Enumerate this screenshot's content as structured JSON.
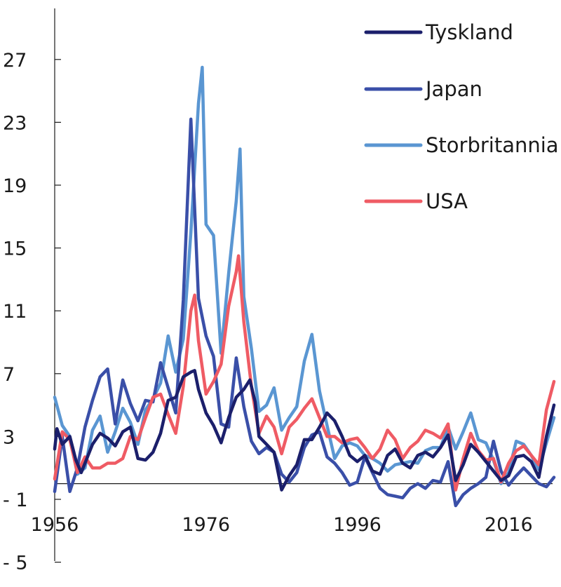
{
  "chart_data": {
    "type": "line",
    "title": "",
    "xlabel": "",
    "ylabel": "",
    "xlim": [
      1956,
      2023
    ],
    "ylim": [
      -5,
      30
    ],
    "yticks": [
      -5,
      -1,
      3,
      7,
      11,
      15,
      19,
      23,
      27
    ],
    "ytick_labels": [
      "- 5",
      "- 1",
      "3",
      "7",
      "11",
      "15",
      "19",
      "23",
      "27"
    ],
    "xticks": [
      1956,
      1976,
      1996,
      2016
    ],
    "xtick_labels": [
      "1956",
      "1976",
      "1996",
      "2016"
    ],
    "zero_line": 0,
    "grid": false,
    "legend_position": "top-right",
    "series": [
      {
        "name": "Tyskland",
        "color": "#1b1f6b",
        "points": [
          [
            1956.0,
            2.2
          ],
          [
            1956.3,
            3.5
          ],
          [
            1957.0,
            2.5
          ],
          [
            1958.0,
            3.0
          ],
          [
            1958.8,
            1.5
          ],
          [
            1959.5,
            0.7
          ],
          [
            1960.0,
            1.3
          ],
          [
            1961.0,
            2.5
          ],
          [
            1962.0,
            3.2
          ],
          [
            1963.0,
            2.9
          ],
          [
            1964.0,
            2.4
          ],
          [
            1965.0,
            3.3
          ],
          [
            1966.0,
            3.6
          ],
          [
            1967.0,
            1.6
          ],
          [
            1968.0,
            1.5
          ],
          [
            1969.0,
            2.0
          ],
          [
            1970.0,
            3.2
          ],
          [
            1971.0,
            5.3
          ],
          [
            1972.0,
            5.5
          ],
          [
            1973.0,
            6.8
          ],
          [
            1974.0,
            7.1
          ],
          [
            1974.5,
            7.2
          ],
          [
            1975.0,
            6.0
          ],
          [
            1976.0,
            4.5
          ],
          [
            1977.0,
            3.7
          ],
          [
            1978.0,
            2.6
          ],
          [
            1979.0,
            4.2
          ],
          [
            1980.0,
            5.5
          ],
          [
            1981.0,
            6.0
          ],
          [
            1981.8,
            6.6
          ],
          [
            1982.5,
            5.2
          ],
          [
            1983.0,
            3.0
          ],
          [
            1984.0,
            2.5
          ],
          [
            1985.0,
            2.0
          ],
          [
            1986.0,
            -0.4
          ],
          [
            1987.0,
            0.5
          ],
          [
            1988.0,
            1.2
          ],
          [
            1989.0,
            2.8
          ],
          [
            1990.0,
            2.8
          ],
          [
            1991.0,
            3.6
          ],
          [
            1992.0,
            4.5
          ],
          [
            1993.0,
            4.0
          ],
          [
            1994.0,
            3.0
          ],
          [
            1995.0,
            1.8
          ],
          [
            1996.0,
            1.4
          ],
          [
            1997.0,
            1.8
          ],
          [
            1998.0,
            0.8
          ],
          [
            1999.0,
            0.6
          ],
          [
            2000.0,
            1.8
          ],
          [
            2001.0,
            2.2
          ],
          [
            2002.0,
            1.3
          ],
          [
            2003.0,
            1.0
          ],
          [
            2004.0,
            1.8
          ],
          [
            2005.0,
            2.0
          ],
          [
            2006.0,
            1.7
          ],
          [
            2007.0,
            2.3
          ],
          [
            2008.0,
            3.1
          ],
          [
            2009.0,
            0.2
          ],
          [
            2010.0,
            1.2
          ],
          [
            2011.0,
            2.5
          ],
          [
            2012.0,
            2.0
          ],
          [
            2013.0,
            1.4
          ],
          [
            2014.0,
            0.8
          ],
          [
            2015.0,
            0.2
          ],
          [
            2016.0,
            0.5
          ],
          [
            2017.0,
            1.7
          ],
          [
            2018.0,
            1.8
          ],
          [
            2019.0,
            1.4
          ],
          [
            2020.0,
            0.4
          ],
          [
            2021.0,
            3.0
          ],
          [
            2022.0,
            5.0
          ]
        ]
      },
      {
        "name": "Japan",
        "color": "#3a4fa8",
        "points": [
          [
            1956.0,
            -0.5
          ],
          [
            1957.0,
            3.0
          ],
          [
            1958.0,
            -0.5
          ],
          [
            1959.0,
            1.0
          ],
          [
            1960.0,
            3.6
          ],
          [
            1961.0,
            5.3
          ],
          [
            1962.0,
            6.8
          ],
          [
            1963.0,
            7.3
          ],
          [
            1964.0,
            3.8
          ],
          [
            1965.0,
            6.6
          ],
          [
            1966.0,
            5.1
          ],
          [
            1967.0,
            4.0
          ],
          [
            1968.0,
            5.3
          ],
          [
            1969.0,
            5.2
          ],
          [
            1970.0,
            7.7
          ],
          [
            1971.0,
            6.1
          ],
          [
            1972.0,
            4.5
          ],
          [
            1973.0,
            11.7
          ],
          [
            1974.0,
            23.2
          ],
          [
            1975.0,
            11.8
          ],
          [
            1976.0,
            9.4
          ],
          [
            1977.0,
            8.1
          ],
          [
            1978.0,
            3.8
          ],
          [
            1979.0,
            3.6
          ],
          [
            1980.0,
            8.0
          ],
          [
            1981.0,
            4.9
          ],
          [
            1982.0,
            2.7
          ],
          [
            1983.0,
            1.9
          ],
          [
            1984.0,
            2.3
          ],
          [
            1985.0,
            2.0
          ],
          [
            1986.0,
            0.6
          ],
          [
            1987.0,
            0.1
          ],
          [
            1988.0,
            0.7
          ],
          [
            1989.0,
            2.3
          ],
          [
            1990.0,
            3.1
          ],
          [
            1991.0,
            3.3
          ],
          [
            1992.0,
            1.7
          ],
          [
            1993.0,
            1.3
          ],
          [
            1994.0,
            0.7
          ],
          [
            1995.0,
            -0.1
          ],
          [
            1996.0,
            0.1
          ],
          [
            1997.0,
            1.7
          ],
          [
            1998.0,
            0.7
          ],
          [
            1999.0,
            -0.3
          ],
          [
            2000.0,
            -0.7
          ],
          [
            2001.0,
            -0.8
          ],
          [
            2002.0,
            -0.9
          ],
          [
            2003.0,
            -0.3
          ],
          [
            2004.0,
            0.0
          ],
          [
            2005.0,
            -0.3
          ],
          [
            2006.0,
            0.2
          ],
          [
            2007.0,
            0.1
          ],
          [
            2008.0,
            1.4
          ],
          [
            2009.0,
            -1.4
          ],
          [
            2010.0,
            -0.7
          ],
          [
            2011.0,
            -0.3
          ],
          [
            2012.0,
            0.0
          ],
          [
            2013.0,
            0.4
          ],
          [
            2014.0,
            2.7
          ],
          [
            2015.0,
            0.8
          ],
          [
            2016.0,
            -0.1
          ],
          [
            2017.0,
            0.5
          ],
          [
            2018.0,
            1.0
          ],
          [
            2019.0,
            0.5
          ],
          [
            2020.0,
            0.0
          ],
          [
            2021.0,
            -0.2
          ],
          [
            2022.0,
            0.4
          ]
        ]
      },
      {
        "name": "Storbritannia",
        "color": "#5a96d2",
        "points": [
          [
            1956.0,
            5.5
          ],
          [
            1957.0,
            3.7
          ],
          [
            1958.0,
            3.0
          ],
          [
            1959.0,
            0.6
          ],
          [
            1960.0,
            1.0
          ],
          [
            1961.0,
            3.4
          ],
          [
            1962.0,
            4.3
          ],
          [
            1963.0,
            2.0
          ],
          [
            1964.0,
            3.3
          ],
          [
            1965.0,
            4.8
          ],
          [
            1966.0,
            3.9
          ],
          [
            1967.0,
            2.5
          ],
          [
            1968.0,
            4.7
          ],
          [
            1969.0,
            5.4
          ],
          [
            1970.0,
            6.4
          ],
          [
            1971.0,
            9.4
          ],
          [
            1972.0,
            7.1
          ],
          [
            1973.0,
            9.2
          ],
          [
            1974.0,
            16.0
          ],
          [
            1975.0,
            24.2
          ],
          [
            1975.5,
            26.5
          ],
          [
            1976.0,
            16.5
          ],
          [
            1977.0,
            15.8
          ],
          [
            1978.0,
            8.3
          ],
          [
            1979.0,
            13.4
          ],
          [
            1980.0,
            18.0
          ],
          [
            1980.5,
            21.3
          ],
          [
            1981.0,
            11.9
          ],
          [
            1982.0,
            8.6
          ],
          [
            1983.0,
            4.6
          ],
          [
            1984.0,
            5.0
          ],
          [
            1985.0,
            6.1
          ],
          [
            1986.0,
            3.4
          ],
          [
            1987.0,
            4.2
          ],
          [
            1988.0,
            4.9
          ],
          [
            1989.0,
            7.8
          ],
          [
            1990.0,
            9.5
          ],
          [
            1991.0,
            5.9
          ],
          [
            1992.0,
            3.7
          ],
          [
            1993.0,
            1.6
          ],
          [
            1994.0,
            2.4
          ],
          [
            1995.0,
            2.6
          ],
          [
            1996.0,
            2.4
          ],
          [
            1997.0,
            1.8
          ],
          [
            1998.0,
            1.6
          ],
          [
            1999.0,
            1.3
          ],
          [
            2000.0,
            0.8
          ],
          [
            2001.0,
            1.2
          ],
          [
            2002.0,
            1.3
          ],
          [
            2003.0,
            1.4
          ],
          [
            2004.0,
            1.3
          ],
          [
            2005.0,
            2.1
          ],
          [
            2006.0,
            2.3
          ],
          [
            2007.0,
            2.3
          ],
          [
            2008.0,
            3.6
          ],
          [
            2009.0,
            2.2
          ],
          [
            2010.0,
            3.3
          ],
          [
            2011.0,
            4.5
          ],
          [
            2012.0,
            2.8
          ],
          [
            2013.0,
            2.6
          ],
          [
            2014.0,
            1.5
          ],
          [
            2015.0,
            0.0
          ],
          [
            2016.0,
            0.7
          ],
          [
            2017.0,
            2.7
          ],
          [
            2018.0,
            2.5
          ],
          [
            2019.0,
            1.8
          ],
          [
            2020.0,
            0.9
          ],
          [
            2021.0,
            2.6
          ],
          [
            2022.0,
            4.2
          ]
        ]
      },
      {
        "name": "USA",
        "color": "#ef5b64",
        "points": [
          [
            1956.0,
            0.3
          ],
          [
            1957.0,
            3.3
          ],
          [
            1958.0,
            2.8
          ],
          [
            1959.0,
            0.7
          ],
          [
            1960.0,
            1.7
          ],
          [
            1961.0,
            1.0
          ],
          [
            1962.0,
            1.0
          ],
          [
            1963.0,
            1.3
          ],
          [
            1964.0,
            1.3
          ],
          [
            1965.0,
            1.6
          ],
          [
            1966.0,
            3.0
          ],
          [
            1967.0,
            2.8
          ],
          [
            1968.0,
            4.2
          ],
          [
            1969.0,
            5.5
          ],
          [
            1970.0,
            5.7
          ],
          [
            1971.0,
            4.4
          ],
          [
            1972.0,
            3.2
          ],
          [
            1973.0,
            6.2
          ],
          [
            1974.0,
            11.0
          ],
          [
            1974.5,
            12.0
          ],
          [
            1975.0,
            9.1
          ],
          [
            1976.0,
            5.7
          ],
          [
            1977.0,
            6.5
          ],
          [
            1978.0,
            7.6
          ],
          [
            1979.0,
            11.3
          ],
          [
            1980.0,
            13.5
          ],
          [
            1980.3,
            14.5
          ],
          [
            1981.0,
            10.3
          ],
          [
            1982.0,
            6.2
          ],
          [
            1983.0,
            3.2
          ],
          [
            1984.0,
            4.3
          ],
          [
            1985.0,
            3.6
          ],
          [
            1986.0,
            1.9
          ],
          [
            1987.0,
            3.6
          ],
          [
            1988.0,
            4.1
          ],
          [
            1989.0,
            4.8
          ],
          [
            1990.0,
            5.4
          ],
          [
            1991.0,
            4.2
          ],
          [
            1992.0,
            3.0
          ],
          [
            1993.0,
            3.0
          ],
          [
            1994.0,
            2.6
          ],
          [
            1995.0,
            2.8
          ],
          [
            1996.0,
            2.9
          ],
          [
            1997.0,
            2.3
          ],
          [
            1998.0,
            1.6
          ],
          [
            1999.0,
            2.2
          ],
          [
            2000.0,
            3.4
          ],
          [
            2001.0,
            2.8
          ],
          [
            2002.0,
            1.6
          ],
          [
            2003.0,
            2.3
          ],
          [
            2004.0,
            2.7
          ],
          [
            2005.0,
            3.4
          ],
          [
            2006.0,
            3.2
          ],
          [
            2007.0,
            2.9
          ],
          [
            2008.0,
            3.8
          ],
          [
            2009.0,
            -0.4
          ],
          [
            2010.0,
            1.6
          ],
          [
            2011.0,
            3.2
          ],
          [
            2012.0,
            2.1
          ],
          [
            2013.0,
            1.5
          ],
          [
            2014.0,
            1.6
          ],
          [
            2015.0,
            0.1
          ],
          [
            2016.0,
            1.3
          ],
          [
            2017.0,
            2.1
          ],
          [
            2018.0,
            2.4
          ],
          [
            2019.0,
            1.8
          ],
          [
            2020.0,
            1.2
          ],
          [
            2021.0,
            4.7
          ],
          [
            2022.0,
            6.5
          ]
        ]
      }
    ]
  }
}
